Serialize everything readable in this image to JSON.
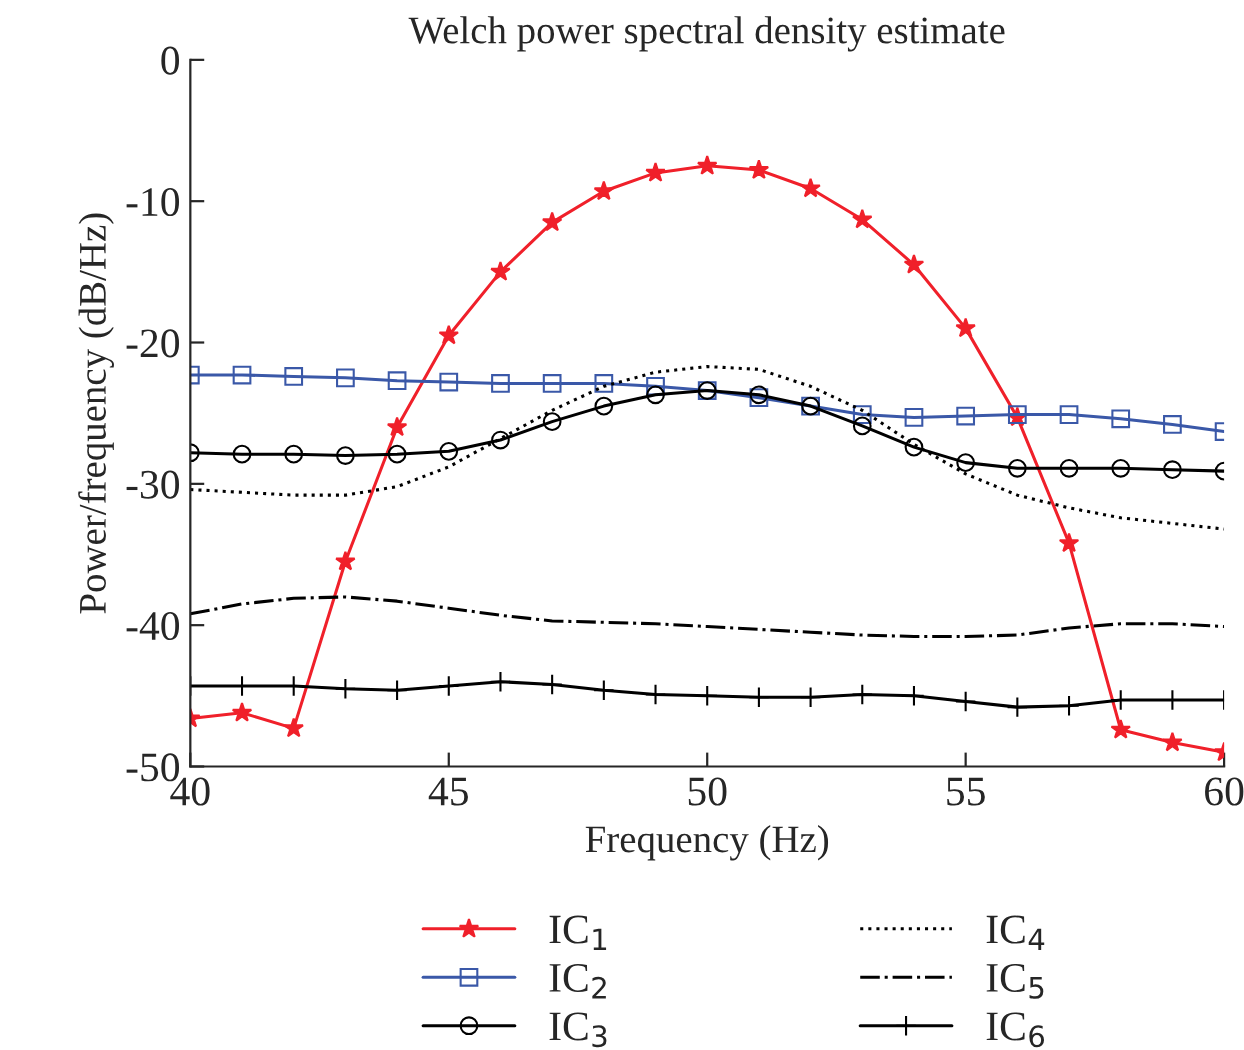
{
  "chart_data": {
    "type": "line",
    "title": "Welch power spectral density estimate",
    "xlabel": "Frequency (Hz)",
    "ylabel": "Power/frequency (dB/Hz)",
    "x": [
      40,
      41,
      42,
      43,
      44,
      45,
      46,
      47,
      48,
      49,
      50,
      51,
      52,
      53,
      54,
      55,
      56,
      57,
      58,
      59,
      60
    ],
    "xlim": [
      40,
      60
    ],
    "xticks": [
      40,
      45,
      50,
      55,
      60
    ],
    "ylim": [
      -50,
      0
    ],
    "yticks": [
      -50,
      -40,
      -30,
      -20,
      -10,
      0
    ],
    "grid": false,
    "legend": "bottom",
    "series": [
      {
        "name": "IC$_{1}$",
        "color": "#f0202a",
        "marker": "star",
        "line_style": "solid",
        "values": [
          -46.6,
          -46.2,
          -47.3,
          -35.5,
          -26,
          -19.5,
          -15,
          -11.5,
          -9.3,
          -8,
          -7.5,
          -7.8,
          -9.1,
          -11.3,
          -14.5,
          -19,
          -25.3,
          -34.2,
          -47.4,
          -48.3,
          -49
        ]
      },
      {
        "name": "IC$_{2}$",
        "color": "#3a58a8",
        "marker": "square",
        "line_style": "solid",
        "values": [
          -22.3,
          -22.3,
          -22.4,
          -22.5,
          -22.7,
          -22.8,
          -22.9,
          -22.9,
          -22.9,
          -23.1,
          -23.4,
          -23.9,
          -24.5,
          -25.1,
          -25.3,
          -25.2,
          -25.1,
          -25.1,
          -25.4,
          -25.8,
          -26.3
        ]
      },
      {
        "name": "IC$_{3}$",
        "color": "#000000",
        "marker": "circle",
        "line_style": "solid",
        "values": [
          -27.8,
          -27.9,
          -27.9,
          -28.0,
          -27.9,
          -27.7,
          -26.9,
          -25.6,
          -24.5,
          -23.7,
          -23.4,
          -23.7,
          -24.5,
          -25.9,
          -27.4,
          -28.5,
          -28.9,
          -28.9,
          -28.9,
          -29.0,
          -29.1
        ]
      },
      {
        "name": "IC$_{4}$",
        "color": "#000000",
        "marker": "none",
        "line_style": "dotted",
        "values": [
          -30.4,
          -30.6,
          -30.8,
          -30.8,
          -30.2,
          -28.8,
          -26.8,
          -24.8,
          -23.1,
          -22.1,
          -21.7,
          -21.9,
          -23.1,
          -24.8,
          -27.2,
          -29.3,
          -30.8,
          -31.7,
          -32.4,
          -32.8,
          -33.2
        ]
      },
      {
        "name": "IC$_{5}$",
        "color": "#000000",
        "marker": "none",
        "line_style": "dashdot",
        "values": [
          -39.2,
          -38.5,
          -38.1,
          -38.0,
          -38.3,
          -38.8,
          -39.3,
          -39.7,
          -39.8,
          -39.9,
          -40.1,
          -40.3,
          -40.5,
          -40.7,
          -40.8,
          -40.8,
          -40.7,
          -40.2,
          -39.9,
          -39.9,
          -40.1
        ]
      },
      {
        "name": "IC$_{6}$",
        "color": "#000000",
        "marker": "cross",
        "line_style": "solid",
        "values": [
          -44.3,
          -44.3,
          -44.3,
          -44.5,
          -44.6,
          -44.3,
          -44.0,
          -44.2,
          -44.6,
          -44.9,
          -45.0,
          -45.1,
          -45.1,
          -44.9,
          -45.0,
          -45.4,
          -45.8,
          -45.7,
          -45.3,
          -45.3,
          -45.3
        ]
      }
    ]
  }
}
